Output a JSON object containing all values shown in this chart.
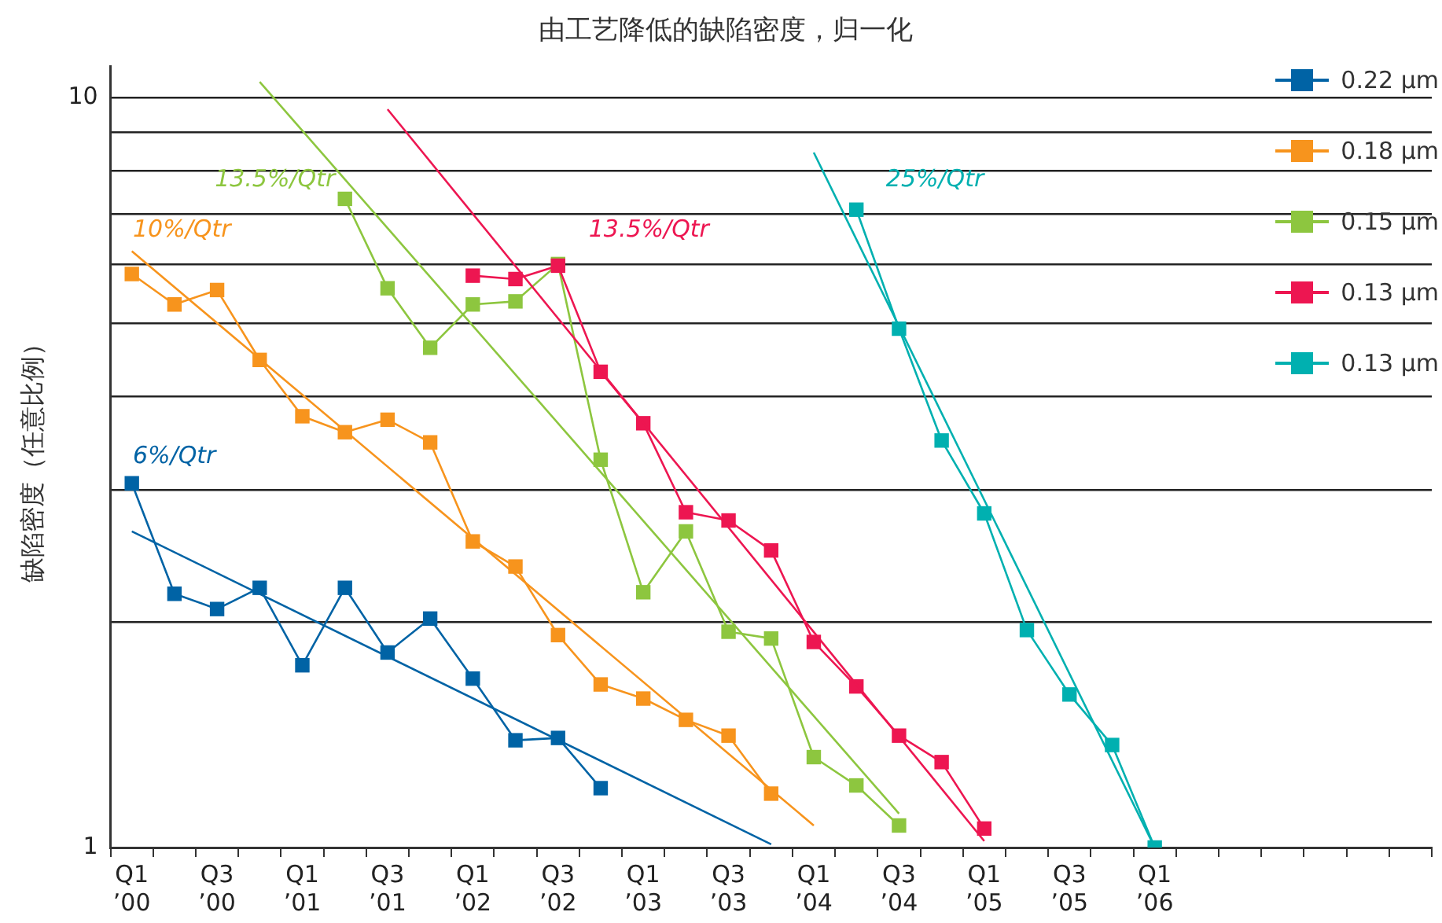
{
  "chart_data": {
    "type": "line",
    "title": "由工艺降低的缺陷密度，归一化",
    "ylabel": "缺陷密度（任意比例）",
    "categories": [
      "Q1\n’00",
      null,
      "Q3\n’00",
      null,
      "Q1\n’01",
      null,
      "Q3\n’01",
      null,
      "Q1\n’02",
      null,
      "Q3\n’02",
      null,
      "Q1\n’03",
      null,
      "Q3\n’03",
      null,
      "Q1\n’04",
      null,
      "Q3\n’04",
      null,
      "Q1\n’05",
      null,
      "Q3\n’05",
      null,
      "Q1\n’06",
      null,
      null,
      null,
      null,
      null,
      null
    ],
    "log": "y",
    "ylim": [
      1,
      11
    ],
    "yticks": [
      1,
      {
        "value": 2,
        "label": null
      },
      {
        "value": 3,
        "label": null
      },
      {
        "value": 4,
        "label": null
      },
      {
        "value": 5,
        "label": null
      },
      {
        "value": 6,
        "label": null
      },
      {
        "value": 7,
        "label": null
      },
      {
        "value": 8,
        "label": null
      },
      {
        "value": 9,
        "label": null
      },
      10
    ],
    "grid": "y",
    "legend": "top right",
    "marker": "square",
    "series": [
      {
        "name": "0.22 µm",
        "color": "#0063a5",
        "values": [
          3.06,
          2.18,
          2.08,
          2.22,
          1.75,
          2.22,
          1.82,
          2.02,
          1.68,
          1.39,
          1.4,
          1.2,
          null,
          null,
          null,
          null,
          null,
          null,
          null,
          null,
          null,
          null,
          null,
          null,
          null,
          null,
          null,
          null,
          null,
          null,
          null
        ]
      },
      {
        "name": "0.18 µm",
        "color": "#f7941d",
        "values": [
          5.82,
          5.3,
          5.54,
          4.47,
          3.76,
          3.58,
          3.72,
          3.47,
          2.56,
          2.37,
          1.92,
          1.65,
          1.58,
          1.48,
          1.41,
          1.18,
          null,
          null,
          null,
          null,
          null,
          null,
          null,
          null,
          null,
          null,
          null,
          null,
          null,
          null,
          null
        ]
      },
      {
        "name": "0.15 µm",
        "color": "#8dc63f",
        "values": [
          null,
          null,
          null,
          null,
          null,
          7.33,
          5.57,
          4.64,
          5.3,
          5.35,
          6.0,
          3.29,
          2.19,
          2.64,
          1.94,
          1.9,
          1.32,
          1.21,
          1.07,
          null,
          null,
          null,
          null,
          null,
          null,
          null,
          null,
          null,
          null,
          null,
          null
        ]
      },
      {
        "name": "0.13 µm",
        "color": "#ed1651",
        "values": [
          null,
          null,
          null,
          null,
          null,
          null,
          null,
          null,
          5.79,
          5.73,
          5.97,
          4.31,
          3.68,
          2.8,
          2.73,
          2.49,
          1.88,
          1.64,
          1.41,
          1.3,
          1.06,
          null,
          null,
          null,
          null,
          null,
          null,
          null,
          null,
          null,
          null
        ]
      },
      {
        "name": "0.13 µm",
        "color": "#00b0b0",
        "values": [
          null,
          null,
          null,
          null,
          null,
          null,
          null,
          null,
          null,
          null,
          null,
          null,
          null,
          null,
          null,
          null,
          null,
          7.09,
          4.92,
          3.49,
          2.79,
          1.95,
          1.6,
          1.37,
          1.0,
          null,
          null,
          null,
          null,
          null,
          null
        ]
      },
      {
        "color": "#0063a5",
        "marker": "none",
        "values": [
          2.64,
          null,
          null,
          null,
          null,
          null,
          null,
          null,
          null,
          null,
          null,
          null,
          null,
          null,
          null,
          1.01,
          null,
          null,
          null,
          null,
          null,
          null,
          null,
          null,
          null,
          null,
          null,
          null,
          null,
          null,
          null
        ]
      },
      {
        "color": "#f7941d",
        "marker": "none",
        "values": [
          6.24,
          null,
          null,
          null,
          null,
          null,
          null,
          null,
          null,
          null,
          null,
          null,
          null,
          null,
          null,
          null,
          1.07,
          null,
          null,
          null,
          null,
          null,
          null,
          null,
          null,
          null,
          null,
          null,
          null,
          null,
          null
        ]
      },
      {
        "color": "#8dc63f",
        "marker": "none",
        "values": [
          null,
          null,
          null,
          10.5,
          null,
          null,
          null,
          null,
          null,
          null,
          null,
          null,
          null,
          null,
          null,
          null,
          null,
          null,
          1.11,
          null,
          null,
          null,
          null,
          null,
          null,
          null,
          null,
          null,
          null,
          null,
          null
        ]
      },
      {
        "color": "#ed1651",
        "marker": "none",
        "values": [
          null,
          null,
          null,
          null,
          null,
          null,
          9.65,
          null,
          null,
          null,
          null,
          null,
          null,
          null,
          null,
          null,
          null,
          null,
          null,
          null,
          1.02,
          null,
          null,
          null,
          null,
          null,
          null,
          null,
          null,
          null,
          null
        ]
      },
      {
        "color": "#00b0b0",
        "marker": "none",
        "values": [
          null,
          null,
          null,
          null,
          null,
          null,
          null,
          null,
          null,
          null,
          null,
          null,
          null,
          null,
          null,
          null,
          8.45,
          null,
          null,
          null,
          null,
          null,
          null,
          null,
          1.0,
          null,
          null,
          null,
          null,
          null,
          null
        ]
      }
    ],
    "annotations": [
      "6%/Qtr",
      "10%/Qtr",
      "13.5%/Qtr",
      "13.5%/Qtr",
      "25%/Qtr"
    ]
  }
}
